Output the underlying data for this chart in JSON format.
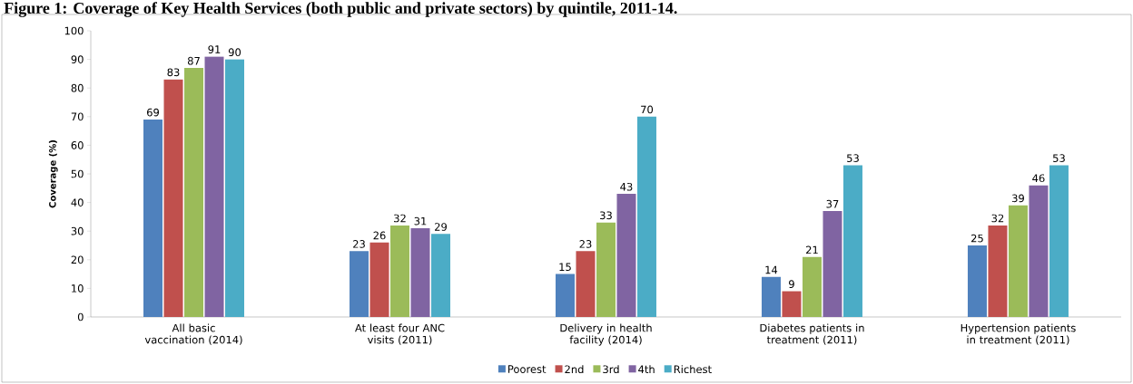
{
  "chart_data": {
    "type": "bar",
    "title": "Figure 1: Coverage of Key Health Services (both public and private sectors) by quintile, 2011-14.",
    "ylabel": "Coverage (%)",
    "categories": [
      "All basic vaccination (2014)",
      "At least four ANC visits (2011)",
      "Delivery in health facility (2014)",
      "Diabetes patients in treatment (2011)",
      "Hypertension patients in treatment (2011)"
    ],
    "series": [
      {
        "name": "Poorest",
        "color": "#4f81bd",
        "values": [
          69,
          23,
          15,
          14,
          25
        ]
      },
      {
        "name": "2nd",
        "color": "#c0504d",
        "values": [
          83,
          26,
          23,
          9,
          32
        ]
      },
      {
        "name": "3rd",
        "color": "#9bbb59",
        "values": [
          87,
          32,
          33,
          21,
          39
        ]
      },
      {
        "name": "4th",
        "color": "#8064a2",
        "values": [
          91,
          31,
          43,
          37,
          46
        ]
      },
      {
        "name": "Richest",
        "color": "#4bacc6",
        "values": [
          90,
          29,
          70,
          53,
          53
        ]
      }
    ],
    "ylim": [
      0,
      100
    ],
    "yticks": [
      0,
      10,
      20,
      30,
      40,
      50,
      60,
      70,
      80,
      90,
      100
    ],
    "data_labels": true,
    "legend": "bottom",
    "grid": false
  }
}
